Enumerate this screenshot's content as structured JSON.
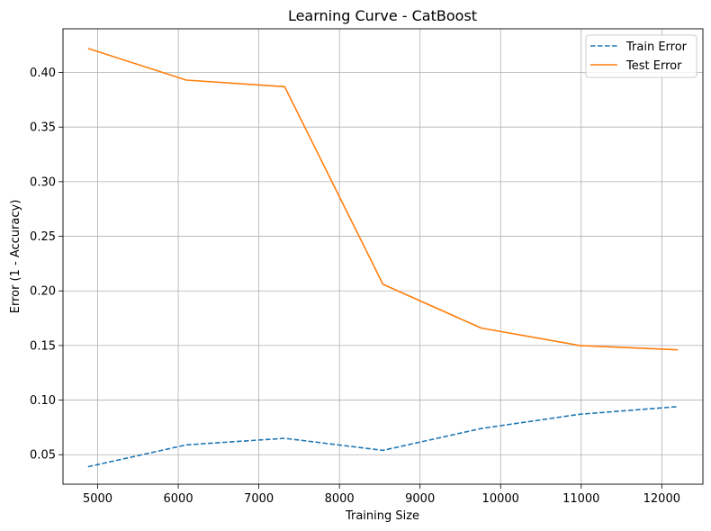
{
  "chart_data": {
    "type": "line",
    "title": "Learning Curve - CatBoost",
    "xlabel": "Training Size",
    "ylabel": "Error (1 - Accuracy)",
    "xlim": [
      4570,
      12510
    ],
    "ylim": [
      0.023,
      0.44
    ],
    "xticks": [
      5000,
      6000,
      7000,
      8000,
      9000,
      10000,
      11000,
      12000
    ],
    "yticks": [
      0.05,
      0.1,
      0.15,
      0.2,
      0.25,
      0.3,
      0.35,
      0.4
    ],
    "ytick_labels": [
      "0.05",
      "0.10",
      "0.15",
      "0.20",
      "0.25",
      "0.30",
      "0.35",
      "0.40"
    ],
    "grid": true,
    "legend_position": "top-right",
    "series": [
      {
        "name": "Train Error",
        "style": "dashed",
        "color": "#1f77b4",
        "x": [
          4880,
          6100,
          7320,
          8540,
          9760,
          10980,
          12200
        ],
        "y": [
          0.039,
          0.059,
          0.065,
          0.054,
          0.074,
          0.087,
          0.094
        ]
      },
      {
        "name": "Test Error",
        "style": "solid",
        "color": "#ff7f0e",
        "x": [
          4880,
          6100,
          7320,
          8540,
          9760,
          10980,
          12200
        ],
        "y": [
          0.422,
          0.393,
          0.387,
          0.206,
          0.166,
          0.15,
          0.146
        ]
      }
    ]
  }
}
